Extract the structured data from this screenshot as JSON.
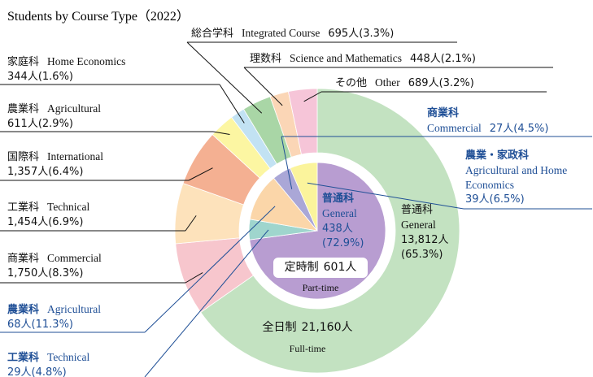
{
  "chart_data": {
    "type": "nested-donut",
    "title": "Students by Course Type（2022）",
    "series": [
      {
        "name": "全日制",
        "total_label": "21,160人",
        "name_en": "Full-time",
        "categories": [
          "普通科",
          "商業科",
          "工業科",
          "国際科",
          "農業科",
          "家庭科",
          "総合学科",
          "理数科",
          "その他"
        ],
        "categories_en": [
          "General",
          "Commercial",
          "Technical",
          "International",
          "Agricultural",
          "Home Economics",
          "Integrated Course",
          "Science and Mathematics",
          "Other"
        ],
        "values": [
          13812,
          1750,
          1454,
          1357,
          611,
          344,
          695,
          448,
          689
        ],
        "value_labels": [
          "13,812人",
          "1,750人",
          "1,454人",
          "1,357人",
          "611人",
          "344人",
          "695人",
          "448人",
          "689人"
        ],
        "percents": [
          65.3,
          8.3,
          6.9,
          6.4,
          2.9,
          1.6,
          3.3,
          2.1,
          3.2
        ],
        "percent_labels": [
          "(65.3%)",
          "(8.3%)",
          "(6.9%)",
          "(6.4%)",
          "(2.9%)",
          "(1.6%)",
          "(3.3%)",
          "(2.1%)",
          "(3.2%)"
        ],
        "colors": [
          "#c3e2c1",
          "#f7c6cd",
          "#fde2bb",
          "#f4b092",
          "#fcf6a2",
          "#c2e2f3",
          "#a9d6a6",
          "#fbd6b6",
          "#f6c5d8"
        ]
      },
      {
        "name": "定時制",
        "total_label": "601人",
        "name_en": "Part-time",
        "categories": [
          "普通科",
          "工業科",
          "農業科",
          "商業科",
          "農業・家政科"
        ],
        "categories_en": [
          "General",
          "Technical",
          "Agricultural",
          "Commercial",
          "Agricultural and Home Economics"
        ],
        "values": [
          438,
          29,
          68,
          27,
          39
        ],
        "value_labels": [
          "438人",
          "29人",
          "68人",
          "27人",
          "39人"
        ],
        "percents": [
          72.9,
          4.8,
          11.3,
          4.5,
          6.5
        ],
        "percent_labels": [
          "(72.9%)",
          "(4.8%)",
          "(11.3%)",
          "(4.5%)",
          "(6.5%)"
        ],
        "colors": [
          "#b89dd1",
          "#9fd5cd",
          "#fbd6a9",
          "#aaa7d7",
          "#fbf49c"
        ]
      }
    ]
  }
}
